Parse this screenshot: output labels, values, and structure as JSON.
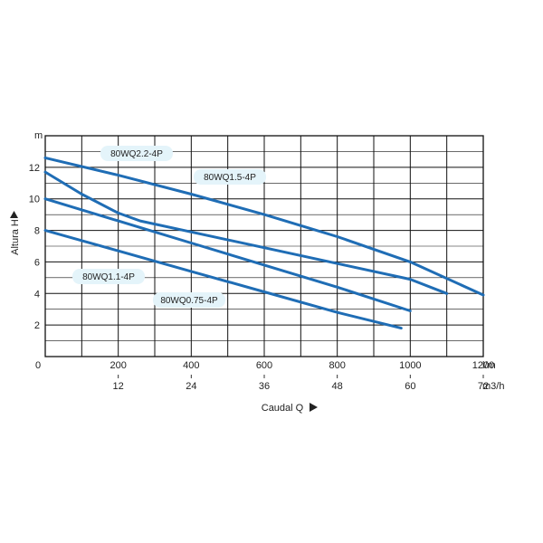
{
  "chart_data": {
    "type": "line",
    "title": "",
    "xlabel": "Caudal Q",
    "ylabel": "Altura H",
    "x_unit_primary": "l/m",
    "x_unit_secondary": "m3/h",
    "y_unit": "m",
    "xlim": [
      0,
      1200
    ],
    "ylim": [
      0,
      14
    ],
    "grid": true,
    "x_ticks_primary": [
      "0",
      "200",
      "400",
      "600",
      "800",
      "1000",
      "1200"
    ],
    "x_ticks_secondary": [
      "12",
      "24",
      "36",
      "48",
      "60",
      "72"
    ],
    "y_ticks": [
      "2",
      "4",
      "6",
      "8",
      "10",
      "12"
    ],
    "line_color": "#1f6db5",
    "label_bg_color": "#e4f4fa",
    "series": [
      {
        "name": "80WQ2.2-4P",
        "x": [
          0,
          200,
          400,
          600,
          800,
          1000,
          1200
        ],
        "y": [
          12.6,
          11.5,
          10.3,
          9.0,
          7.6,
          6.0,
          3.9
        ]
      },
      {
        "name": "80WQ1.5-4P",
        "x": [
          0,
          100,
          200,
          260,
          400,
          600,
          800,
          1000,
          1100
        ],
        "y": [
          11.7,
          10.3,
          9.1,
          8.6,
          7.9,
          6.9,
          5.9,
          4.9,
          4.0
        ]
      },
      {
        "name": "80WQ1.1-4P",
        "x": [
          0,
          200,
          400,
          600,
          800,
          1000
        ],
        "y": [
          10.0,
          8.6,
          7.2,
          5.8,
          4.4,
          2.9
        ]
      },
      {
        "name": "80WQ0.75-4P",
        "x": [
          0,
          200,
          400,
          600,
          800,
          975
        ],
        "y": [
          8.0,
          6.7,
          5.4,
          4.1,
          2.8,
          1.8
        ]
      }
    ]
  }
}
